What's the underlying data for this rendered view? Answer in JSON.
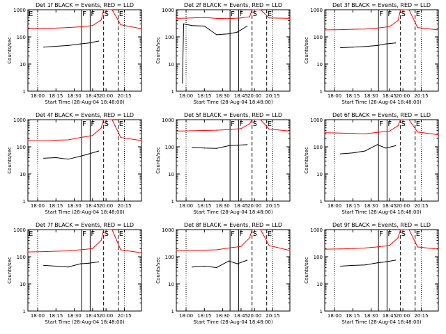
{
  "figure": {
    "xlabel": "Start Time (28-Aug-04 18:48:00)",
    "ylabel": "Counts/sec",
    "colors": {
      "events": "#000000",
      "lld": "#ff0000",
      "axes": "#000000"
    }
  },
  "chart_data": [
    {
      "type": "line",
      "title": "Det 1f BLACK = Events, RED = LLD",
      "xlabel": "Start Time (28-Aug-04 18:48:00)",
      "ylabel": "Counts/sec",
      "yscale": "log",
      "xlim": [
        "17:52",
        "20:29"
      ],
      "ylim": [
        1,
        1000
      ],
      "x_ticks": [
        "18:00",
        "18:15",
        "18:30",
        "18:45",
        "20:00",
        "20:15"
      ],
      "y_ticks": [
        "1",
        "10",
        "100",
        "1000"
      ],
      "markers": [
        {
          "label": "E",
          "x": "17:52"
        },
        {
          "label": "F",
          "x": "18:36"
        },
        {
          "label": "F",
          "x": "18:43"
        },
        {
          "label": "S",
          "x": "18:54"
        },
        {
          "label": "E",
          "x": "20:10"
        }
      ],
      "series": [
        {
          "name": "Events",
          "color": "#000000",
          "x": [
            "18:05",
            "18:15",
            "18:25",
            "18:35",
            "18:42",
            "18:50"
          ],
          "values": [
            42,
            45,
            48,
            55,
            60,
            70
          ]
        },
        {
          "name": "LLD",
          "color": "#ff0000",
          "x": [
            "17:52",
            "18:05",
            "18:15",
            "18:25",
            "18:35",
            "18:45",
            "18:52",
            "18:55",
            "20:05",
            "20:12",
            "20:29"
          ],
          "values": [
            210,
            205,
            210,
            220,
            235,
            260,
            420,
            1000,
            1000,
            280,
            200
          ]
        }
      ]
    },
    {
      "type": "line",
      "title": "Det 2f BLACK = Events, RED = LLD",
      "xlabel": "Start Time (28-Aug-04 18:48:00)",
      "ylabel": "Counts/sec",
      "yscale": "log",
      "xlim": [
        "17:52",
        "20:29"
      ],
      "ylim": [
        1,
        1000
      ],
      "x_ticks": [
        "18:00",
        "18:15",
        "18:30",
        "18:45",
        "20:00",
        "20:15"
      ],
      "y_ticks": [
        "1",
        "10",
        "100",
        "1000"
      ],
      "markers": [
        {
          "label": "F",
          "x": "18:36"
        },
        {
          "label": "F",
          "x": "18:43"
        },
        {
          "label": "S",
          "x": "18:54"
        },
        {
          "label": "E",
          "x": "20:10"
        }
      ],
      "series": [
        {
          "name": "Events",
          "color": "#000000",
          "x": [
            "17:57",
            "17:58",
            "18:05",
            "18:15",
            "18:25",
            "18:35",
            "18:42",
            "18:50"
          ],
          "values": [
            2,
            300,
            260,
            250,
            120,
            130,
            150,
            250
          ]
        },
        {
          "name": "LLD",
          "color": "#ff0000",
          "x": [
            "17:52",
            "18:05",
            "18:15",
            "18:25",
            "18:35",
            "18:45",
            "18:52",
            "18:55",
            "20:05",
            "20:12",
            "20:29"
          ],
          "values": [
            480,
            500,
            520,
            480,
            470,
            500,
            550,
            1000,
            1000,
            500,
            480
          ]
        }
      ]
    },
    {
      "type": "line",
      "title": "Det 3f BLACK = Events, RED = LLD",
      "xlabel": "Start Time (28-Aug-04 18:48:00)",
      "ylabel": "Counts/sec",
      "yscale": "log",
      "xlim": [
        "17:52",
        "20:29"
      ],
      "ylim": [
        1,
        1000
      ],
      "x_ticks": [
        "18:00",
        "18:15",
        "18:30",
        "18:45",
        "20:00",
        "20:15"
      ],
      "y_ticks": [
        "1",
        "10",
        "100",
        "1000"
      ],
      "markers": [
        {
          "label": "F",
          "x": "18:36"
        },
        {
          "label": "F",
          "x": "18:43"
        },
        {
          "label": "S",
          "x": "18:54"
        },
        {
          "label": "E",
          "x": "20:10"
        }
      ],
      "series": [
        {
          "name": "Events",
          "color": "#000000",
          "x": [
            "18:05",
            "18:15",
            "18:25",
            "18:35",
            "18:42",
            "18:50"
          ],
          "values": [
            40,
            42,
            44,
            48,
            55,
            60
          ]
        },
        {
          "name": "LLD",
          "color": "#ff0000",
          "x": [
            "17:52",
            "18:05",
            "18:15",
            "18:25",
            "18:35",
            "18:45",
            "18:52",
            "18:55",
            "20:05",
            "20:12",
            "20:29"
          ],
          "values": [
            180,
            185,
            190,
            195,
            210,
            240,
            400,
            1000,
            1000,
            220,
            180
          ]
        }
      ]
    },
    {
      "type": "line",
      "title": "Det 4f BLACK = Events, RED = LLD",
      "xlabel": "Start Time (28-Aug-04 18:48:00)",
      "ylabel": "Counts/sec",
      "yscale": "log",
      "xlim": [
        "17:52",
        "20:29"
      ],
      "ylim": [
        1,
        1000
      ],
      "x_ticks": [
        "18:00",
        "18:15",
        "18:30",
        "18:45",
        "20:00",
        "20:15"
      ],
      "y_ticks": [
        "1",
        "10",
        "100",
        "1000"
      ],
      "markers": [
        {
          "label": "F",
          "x": "18:36"
        },
        {
          "label": "F",
          "x": "18:43"
        },
        {
          "label": "S",
          "x": "18:54"
        },
        {
          "label": "E",
          "x": "20:10"
        }
      ],
      "series": [
        {
          "name": "Events",
          "color": "#000000",
          "x": [
            "18:05",
            "18:15",
            "18:25",
            "18:35",
            "18:42",
            "18:50"
          ],
          "values": [
            38,
            40,
            35,
            45,
            55,
            70
          ]
        },
        {
          "name": "LLD",
          "color": "#ff0000",
          "x": [
            "17:52",
            "18:05",
            "18:15",
            "18:25",
            "18:35",
            "18:45",
            "18:52",
            "18:55",
            "20:05",
            "20:12",
            "20:29"
          ],
          "values": [
            170,
            165,
            175,
            180,
            220,
            260,
            500,
            1000,
            1000,
            220,
            170
          ]
        }
      ]
    },
    {
      "type": "line",
      "title": "Det 5f BLACK = Events, RED = LLD",
      "xlabel": "Start Time (28-Aug-04 18:48:00)",
      "ylabel": "Counts/sec",
      "yscale": "log",
      "xlim": [
        "17:52",
        "20:29"
      ],
      "ylim": [
        1,
        1000
      ],
      "x_ticks": [
        "18:00",
        "18:15",
        "18:30",
        "18:45",
        "20:00",
        "20:15"
      ],
      "y_ticks": [
        "1",
        "10",
        "100",
        "1000"
      ],
      "markers": [
        {
          "label": "F",
          "x": "18:36"
        },
        {
          "label": "F",
          "x": "18:43"
        },
        {
          "label": "S",
          "x": "18:54"
        },
        {
          "label": "E",
          "x": "20:10"
        }
      ],
      "series": [
        {
          "name": "Events",
          "color": "#000000",
          "x": [
            "18:05",
            "18:15",
            "18:25",
            "18:35",
            "18:42",
            "18:50"
          ],
          "values": [
            95,
            90,
            88,
            110,
            115,
            120
          ]
        },
        {
          "name": "LLD",
          "color": "#ff0000",
          "x": [
            "17:52",
            "18:05",
            "18:15",
            "18:25",
            "18:35",
            "18:45",
            "18:52",
            "18:55",
            "20:05",
            "20:12",
            "20:29"
          ],
          "values": [
            380,
            390,
            400,
            410,
            430,
            470,
            700,
            1000,
            1000,
            450,
            380
          ]
        }
      ]
    },
    {
      "type": "line",
      "title": "Det 6f BLACK = Events, RED = LLD",
      "xlabel": "Start Time (28-Aug-04 18:48:00)",
      "ylabel": "Counts/sec",
      "yscale": "log",
      "xlim": [
        "17:52",
        "20:29"
      ],
      "ylim": [
        1,
        1000
      ],
      "x_ticks": [
        "18:00",
        "18:15",
        "18:30",
        "18:45",
        "20:00",
        "20:15"
      ],
      "y_ticks": [
        "1",
        "10",
        "100",
        "1000"
      ],
      "markers": [
        {
          "label": "F",
          "x": "18:36"
        },
        {
          "label": "F",
          "x": "18:43"
        },
        {
          "label": "S",
          "x": "18:54"
        },
        {
          "label": "E",
          "x": "20:10"
        }
      ],
      "series": [
        {
          "name": "Events",
          "color": "#000000",
          "x": [
            "18:05",
            "18:15",
            "18:25",
            "18:35",
            "18:42",
            "18:50"
          ],
          "values": [
            55,
            60,
            70,
            120,
            90,
            110
          ]
        },
        {
          "name": "LLD",
          "color": "#ff0000",
          "x": [
            "17:52",
            "18:05",
            "18:15",
            "18:25",
            "18:35",
            "18:45",
            "18:52",
            "18:55",
            "20:05",
            "20:12",
            "20:29"
          ],
          "values": [
            330,
            320,
            310,
            300,
            340,
            380,
            600,
            1000,
            1000,
            350,
            280
          ]
        }
      ]
    },
    {
      "type": "line",
      "title": "Det 7f BLACK = Events, RED = LLD",
      "xlabel": "Start Time (28-Aug-04 18:48:00)",
      "ylabel": "Counts/sec",
      "yscale": "log",
      "xlim": [
        "17:52",
        "20:29"
      ],
      "ylim": [
        1,
        1000
      ],
      "x_ticks": [
        "18:00",
        "18:15",
        "18:30",
        "18:45",
        "20:00",
        "20:15"
      ],
      "y_ticks": [
        "1",
        "10",
        "100",
        "1000"
      ],
      "markers": [
        {
          "label": "E",
          "x": "17:52"
        },
        {
          "label": "F",
          "x": "18:36"
        },
        {
          "label": "F",
          "x": "18:43"
        },
        {
          "label": "S",
          "x": "18:54"
        },
        {
          "label": "E",
          "x": "20:10"
        }
      ],
      "series": [
        {
          "name": "Events",
          "color": "#000000",
          "x": [
            "18:05",
            "18:15",
            "18:25",
            "18:35",
            "18:42",
            "18:50"
          ],
          "values": [
            48,
            45,
            42,
            55,
            58,
            65
          ]
        },
        {
          "name": "LLD",
          "color": "#ff0000",
          "x": [
            "17:52",
            "18:05",
            "18:15",
            "18:25",
            "18:35",
            "18:45",
            "18:52",
            "18:55",
            "20:05",
            "20:12",
            "20:29"
          ],
          "values": [
            150,
            155,
            160,
            165,
            180,
            200,
            400,
            1000,
            1000,
            180,
            140
          ]
        }
      ]
    },
    {
      "type": "line",
      "title": "Det 8f BLACK = Events, RED = LLD",
      "xlabel": "Start Time (28-Aug-04 18:48:00)",
      "ylabel": "Counts/sec",
      "yscale": "log",
      "xlim": [
        "17:52",
        "20:29"
      ],
      "ylim": [
        1,
        1000
      ],
      "x_ticks": [
        "18:00",
        "18:15",
        "18:30",
        "18:45",
        "20:00",
        "20:15"
      ],
      "y_ticks": [
        "1",
        "10",
        "100",
        "1000"
      ],
      "markers": [
        {
          "label": "F",
          "x": "18:36"
        },
        {
          "label": "F",
          "x": "18:43"
        },
        {
          "label": "S",
          "x": "18:54"
        },
        {
          "label": "E",
          "x": "20:10"
        }
      ],
      "series": [
        {
          "name": "Events",
          "color": "#000000",
          "x": [
            "18:05",
            "18:15",
            "18:25",
            "18:35",
            "18:42",
            "18:50"
          ],
          "values": [
            42,
            45,
            40,
            70,
            55,
            75
          ]
        },
        {
          "name": "LLD",
          "color": "#ff0000",
          "x": [
            "17:52",
            "18:05",
            "18:15",
            "18:25",
            "18:35",
            "18:45",
            "18:52",
            "18:55",
            "20:05",
            "20:12",
            "20:29"
          ],
          "values": [
            165,
            170,
            175,
            180,
            210,
            240,
            500,
            1000,
            1000,
            260,
            170
          ]
        }
      ]
    },
    {
      "type": "line",
      "title": "Det 9f BLACK = Events, RED = LLD",
      "xlabel": "Start Time (28-Aug-04 18:48:00)",
      "ylabel": "Counts/sec",
      "yscale": "log",
      "xlim": [
        "17:52",
        "20:29"
      ],
      "ylim": [
        1,
        1000
      ],
      "x_ticks": [
        "18:00",
        "18:15",
        "18:30",
        "18:45",
        "20:00",
        "20:15"
      ],
      "y_ticks": [
        "1",
        "10",
        "100",
        "1000"
      ],
      "markers": [
        {
          "label": "F",
          "x": "18:36"
        },
        {
          "label": "F",
          "x": "18:43"
        },
        {
          "label": "S",
          "x": "18:54"
        },
        {
          "label": "E",
          "x": "20:10"
        }
      ],
      "series": [
        {
          "name": "Events",
          "color": "#000000",
          "x": [
            "18:05",
            "18:15",
            "18:25",
            "18:35",
            "18:42",
            "18:50"
          ],
          "values": [
            45,
            48,
            50,
            60,
            65,
            75
          ]
        },
        {
          "name": "LLD",
          "color": "#ff0000",
          "x": [
            "17:52",
            "18:05",
            "18:15",
            "18:25",
            "18:35",
            "18:45",
            "18:52",
            "18:55",
            "20:05",
            "20:12",
            "20:29"
          ],
          "values": [
            190,
            195,
            200,
            210,
            230,
            260,
            500,
            1000,
            1000,
            230,
            190
          ]
        }
      ]
    }
  ]
}
